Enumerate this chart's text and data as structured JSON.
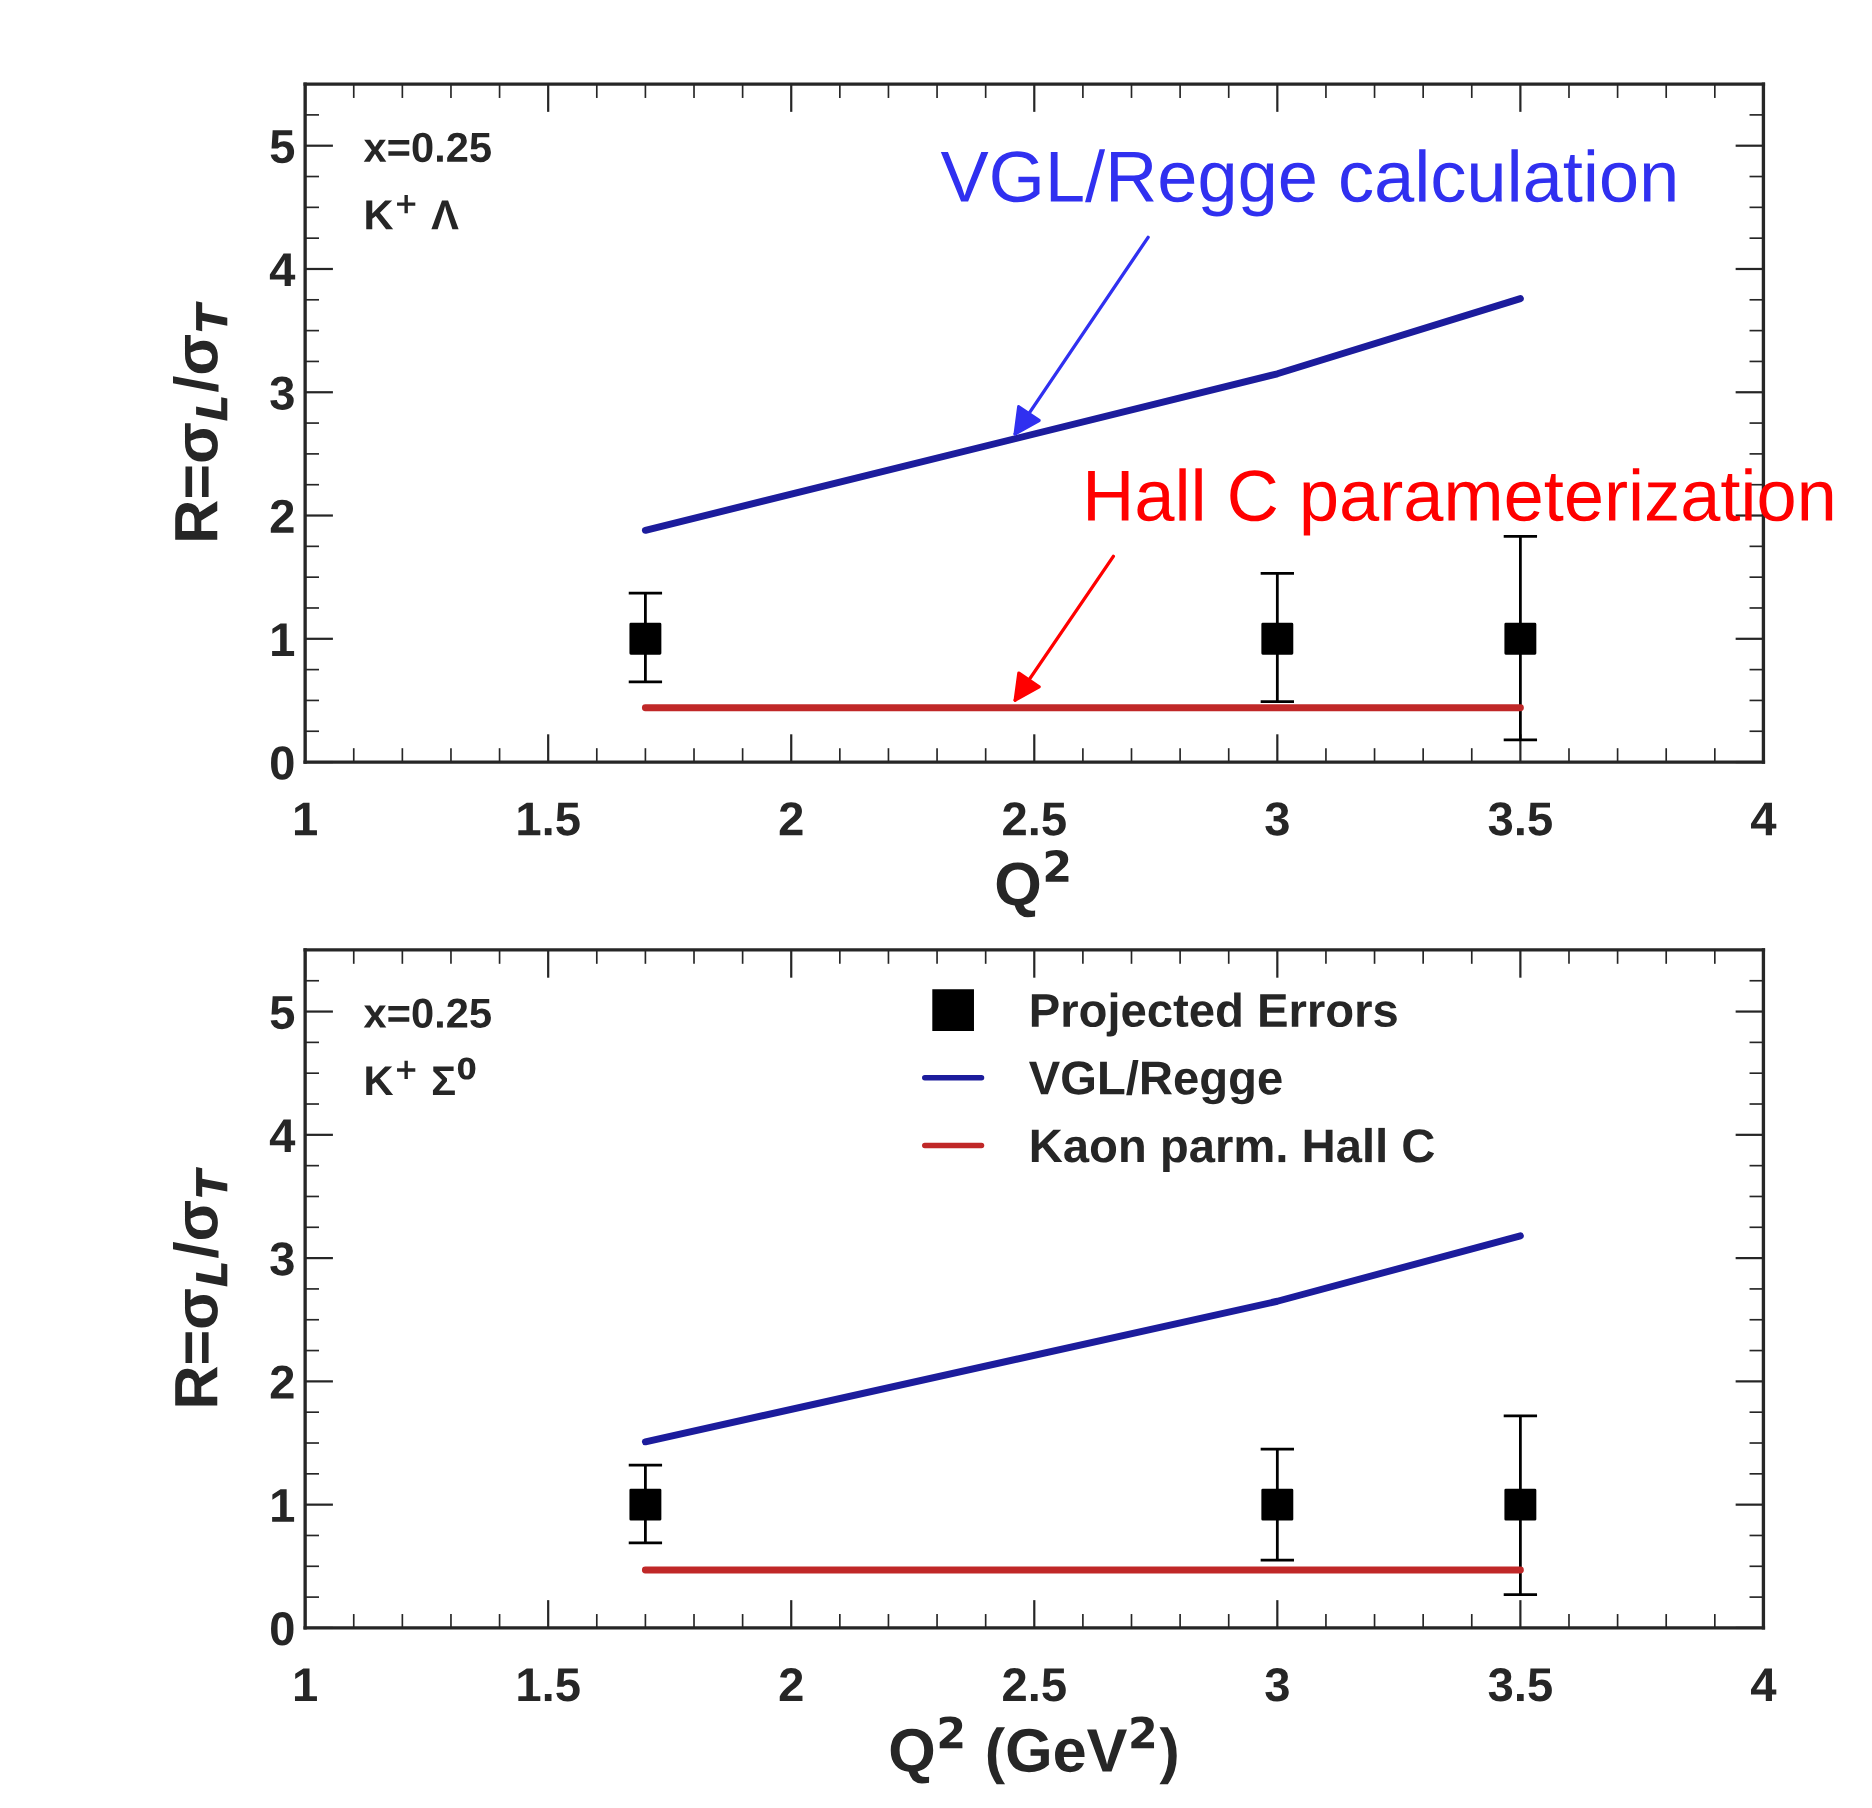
{
  "chart_data": [
    {
      "type": "line",
      "xlabel": "Q$^{2}$",
      "ylabel": "R=σ$_{L}$/σ$_{T}$",
      "xlim": [
        1,
        4
      ],
      "ylim": [
        0,
        5.5
      ],
      "xticks": [
        1,
        1.5,
        2,
        2.5,
        3,
        3.5,
        4
      ],
      "yticks": [
        0,
        1,
        2,
        3,
        4,
        5
      ],
      "grid": false,
      "legend": false,
      "annotations": [
        "x=0.25",
        "K$^{+}$ Λ",
        {
          "text": "VGL/Regge calculation",
          "x": 2.45,
          "y": 2.6
        },
        {
          "text": "Hall C parameterization",
          "x": 2.45,
          "y": 0.44
        }
      ],
      "series": [
        {
          "type": "scatter",
          "marker": "square",
          "color": "#000000",
          "x": [
            1.7,
            3.0,
            3.5
          ],
          "values": [
            1,
            1,
            1
          ],
          "errors": [
            [
              0.65,
              1.37
            ],
            [
              0.49,
              1.53
            ],
            [
              0.18,
              1.83
            ]
          ]
        },
        {
          "color": "#1c1c9c",
          "x": [
            1.7,
            3.0,
            3.5
          ],
          "values": [
            1.88,
            3.15,
            3.76
          ]
        },
        {
          "color": "#c02828",
          "x": [
            1.7,
            3.5
          ],
          "values": [
            0.44,
            0.44
          ]
        }
      ]
    },
    {
      "type": "line",
      "xlabel": "Q$^{2}$ (GeV$^{2}$)",
      "ylabel": "R=σ$_{L}$/σ$_{T}$",
      "xlim": [
        1,
        4
      ],
      "ylim": [
        0,
        5.5
      ],
      "xticks": [
        1,
        1.5,
        2,
        2.5,
        3,
        3.5,
        4
      ],
      "yticks": [
        0,
        1,
        2,
        3,
        4,
        5
      ],
      "grid": false,
      "legend": "top",
      "annotations": [
        "x=0.25",
        "K$^{+}$ Σ$^{0}$"
      ],
      "series": [
        {
          "type": "scatter",
          "marker": "square",
          "name": "Projected Errors",
          "color": "#000000",
          "x": [
            1.7,
            3.0,
            3.5
          ],
          "values": [
            1,
            1,
            1
          ],
          "errors": [
            [
              0.69,
              1.32
            ],
            [
              0.55,
              1.45
            ],
            [
              0.27,
              1.72
            ]
          ]
        },
        {
          "name": "VGL/Regge",
          "color": "#1c1c9c",
          "x": [
            1.7,
            3.0,
            3.5
          ],
          "values": [
            1.51,
            2.65,
            3.18
          ]
        },
        {
          "name": "Kaon parm. Hall C",
          "color": "#c02828",
          "x": [
            1.7,
            3.5
          ],
          "values": [
            0.47,
            0.47
          ]
        }
      ]
    }
  ]
}
